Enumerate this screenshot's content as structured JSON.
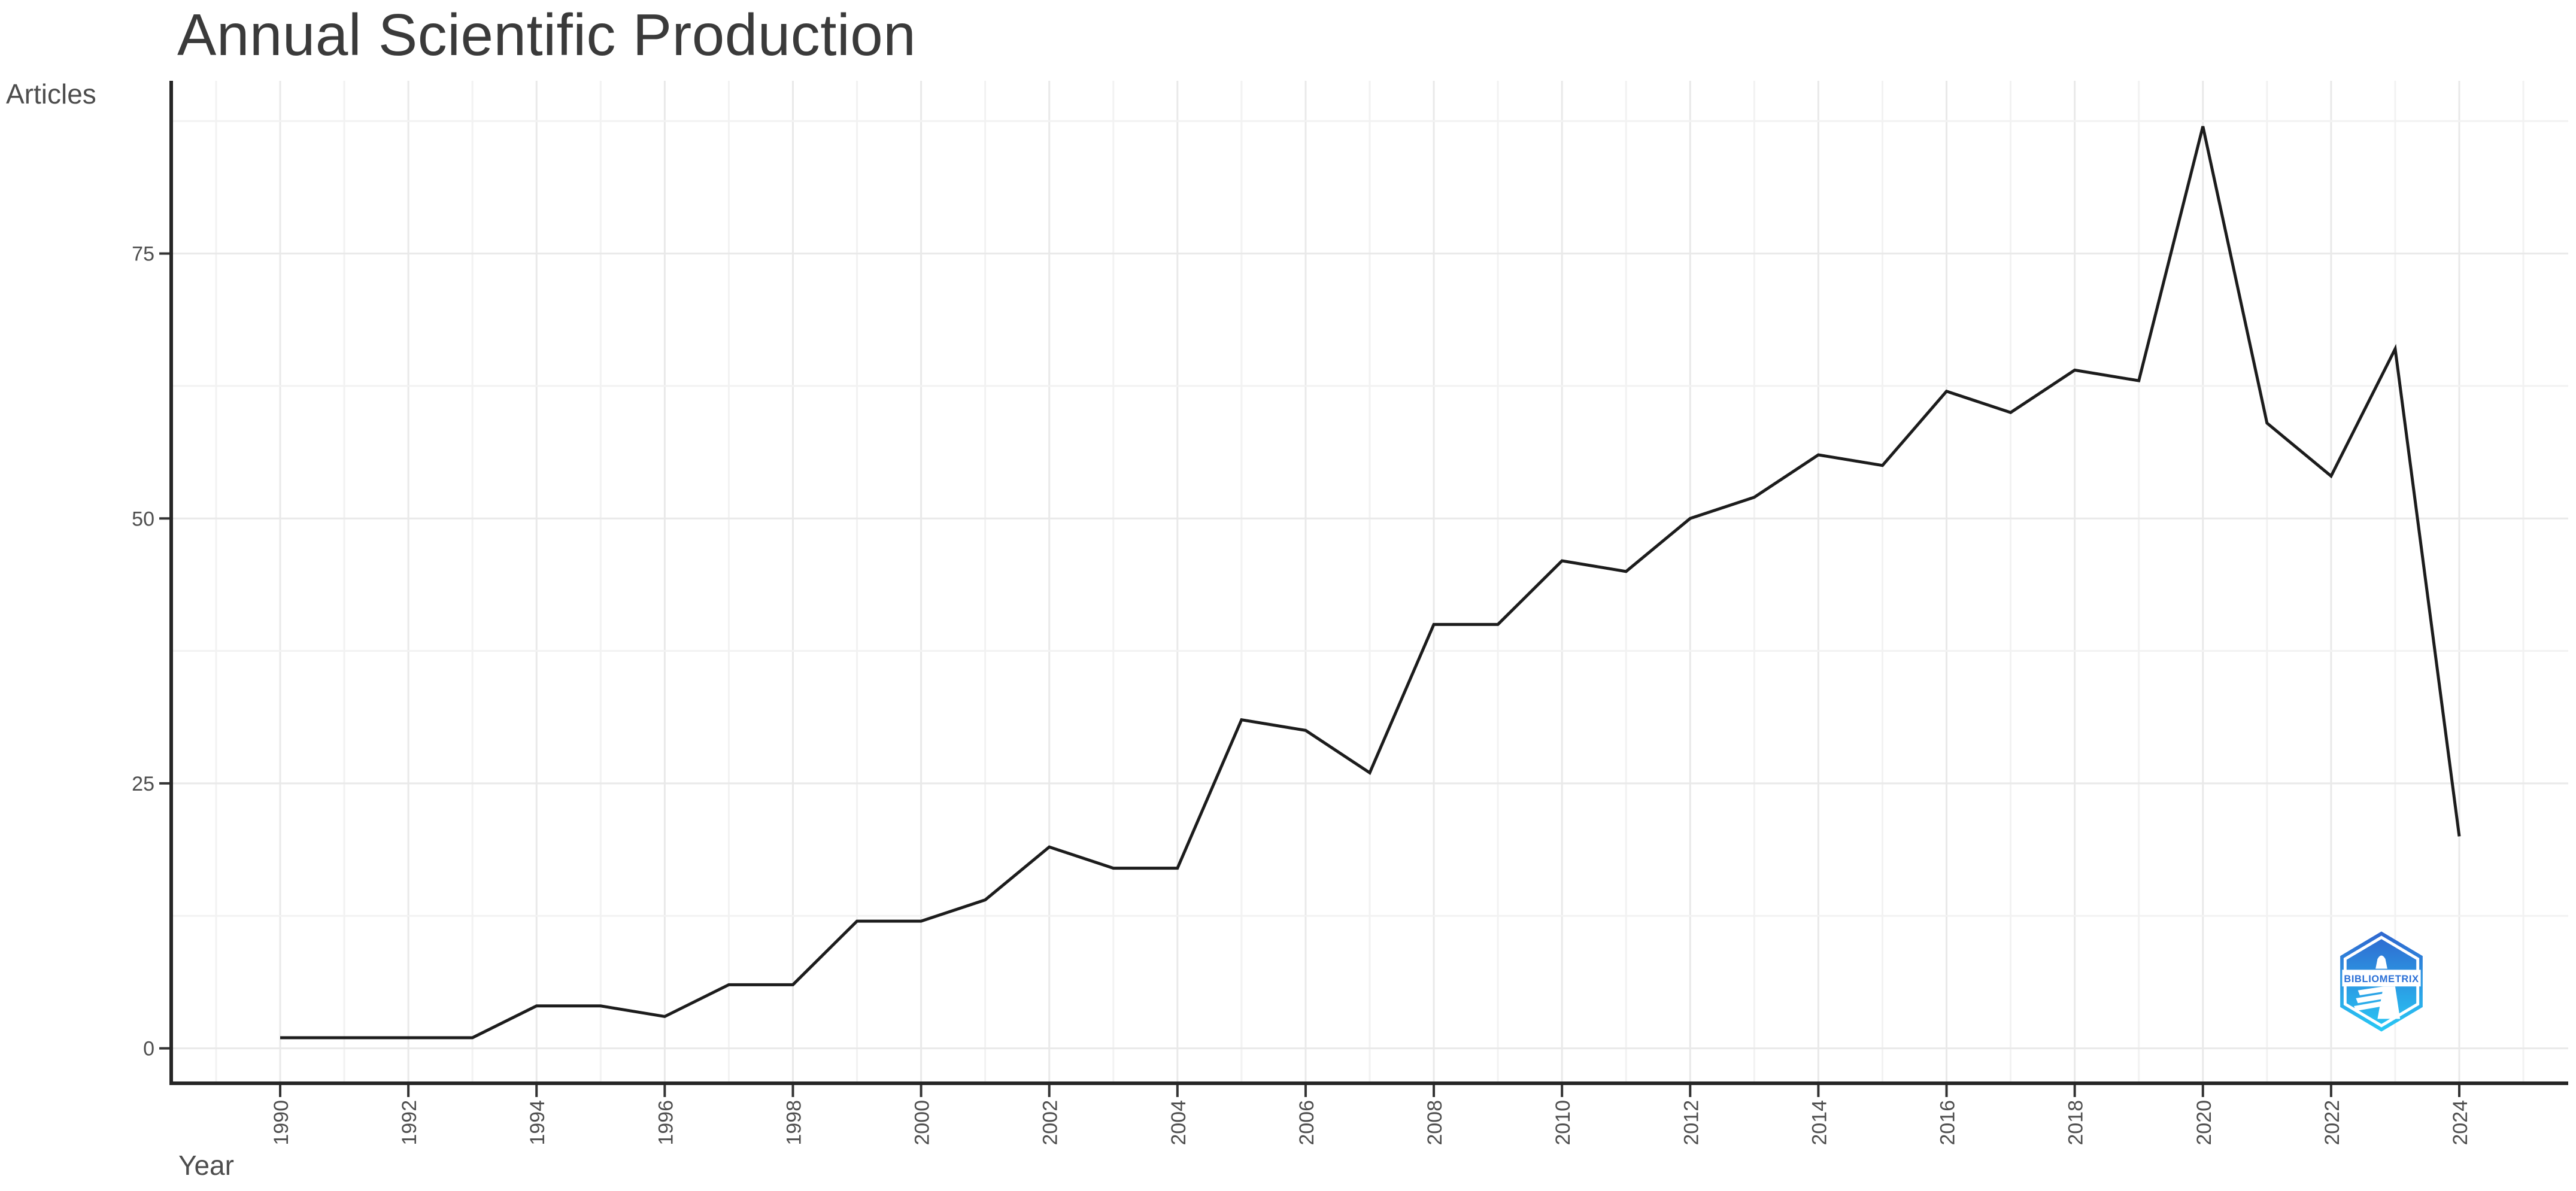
{
  "title": "Annual Scientific Production",
  "axes": {
    "x_title": "Year",
    "y_title": "Articles"
  },
  "chart_data": {
    "type": "line",
    "title": "Annual Scientific Production",
    "xlabel": "Year",
    "ylabel": "Articles",
    "x": [
      1990,
      1991,
      1992,
      1993,
      1994,
      1995,
      1996,
      1997,
      1998,
      1999,
      2000,
      2001,
      2002,
      2003,
      2004,
      2005,
      2006,
      2007,
      2008,
      2009,
      2010,
      2011,
      2012,
      2013,
      2014,
      2015,
      2016,
      2017,
      2018,
      2019,
      2020,
      2021,
      2022,
      2023,
      2024
    ],
    "values": [
      1,
      1,
      1,
      1,
      4,
      4,
      3,
      6,
      6,
      12,
      12,
      14,
      19,
      17,
      17,
      31,
      30,
      26,
      40,
      40,
      46,
      45,
      50,
      52,
      56,
      55,
      62,
      60,
      64,
      63,
      87,
      59,
      54,
      66,
      20
    ],
    "x_major_ticks": [
      1990,
      1992,
      1994,
      1996,
      1998,
      2000,
      2002,
      2004,
      2006,
      2008,
      2010,
      2012,
      2014,
      2016,
      2018,
      2020,
      2022,
      2024
    ],
    "y_major_ticks": [
      0,
      25,
      50,
      75
    ],
    "y_minor_ticks": [
      12.5,
      37.5,
      62.5,
      87.5
    ],
    "x_grid_years_start": 1989,
    "x_grid_years_end": 2025,
    "xlim": [
      1988.3,
      2025.7
    ],
    "ylim": [
      -3.3,
      91.3
    ],
    "grid": "on",
    "legend": "none",
    "line_color": "#1c1c1c"
  },
  "logo": {
    "text": "BIBLIOMETRIX",
    "text_color": "#2a6fd6",
    "color_top": "#2f66cf",
    "color_bottom": "#28c9f5"
  },
  "colors": {
    "title_text": "#3a3a3a",
    "axis_text": "#4d4d4d",
    "grid_major": "#e9e9e9",
    "grid_minor": "#f2f2f2",
    "axis_line": "#262626",
    "tick_mark": "#333333"
  }
}
